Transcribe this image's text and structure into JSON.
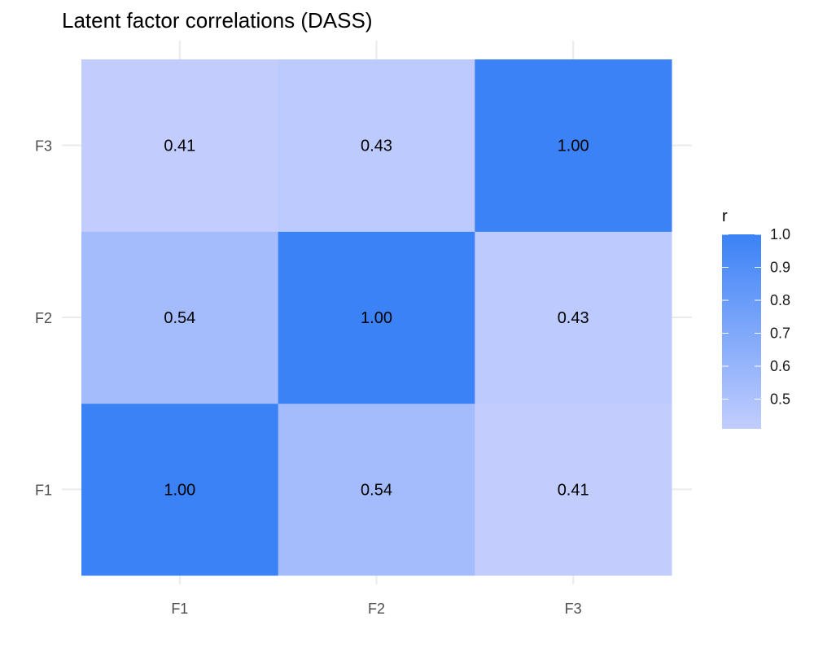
{
  "chart_data": {
    "type": "heatmap",
    "title": "Latent factor correlations (DASS)",
    "x_categories": [
      "F1",
      "F2",
      "F3"
    ],
    "y_categories": [
      "F1",
      "F2",
      "F3"
    ],
    "cells": [
      {
        "x": "F1",
        "y": "F1",
        "value": 1.0,
        "label": "1.00"
      },
      {
        "x": "F2",
        "y": "F1",
        "value": 0.54,
        "label": "0.54"
      },
      {
        "x": "F3",
        "y": "F1",
        "value": 0.41,
        "label": "0.41"
      },
      {
        "x": "F1",
        "y": "F2",
        "value": 0.54,
        "label": "0.54"
      },
      {
        "x": "F2",
        "y": "F2",
        "value": 1.0,
        "label": "1.00"
      },
      {
        "x": "F3",
        "y": "F2",
        "value": 0.43,
        "label": "0.43"
      },
      {
        "x": "F1",
        "y": "F3",
        "value": 0.41,
        "label": "0.41"
      },
      {
        "x": "F2",
        "y": "F3",
        "value": 0.43,
        "label": "0.43"
      },
      {
        "x": "F3",
        "y": "F3",
        "value": 1.0,
        "label": "1.00"
      }
    ],
    "legend": {
      "title": "r",
      "ticks": [
        "0.5",
        "0.6",
        "0.7",
        "0.8",
        "0.9",
        "1.0"
      ],
      "tick_values": [
        0.5,
        0.6,
        0.7,
        0.8,
        0.9,
        1.0
      ],
      "range": [
        0.41,
        1.0
      ],
      "placement": "right"
    },
    "colors": {
      "low": "#c2cdfe",
      "high": "#3b82f6",
      "grid": "#ebebeb"
    },
    "grid": true
  }
}
